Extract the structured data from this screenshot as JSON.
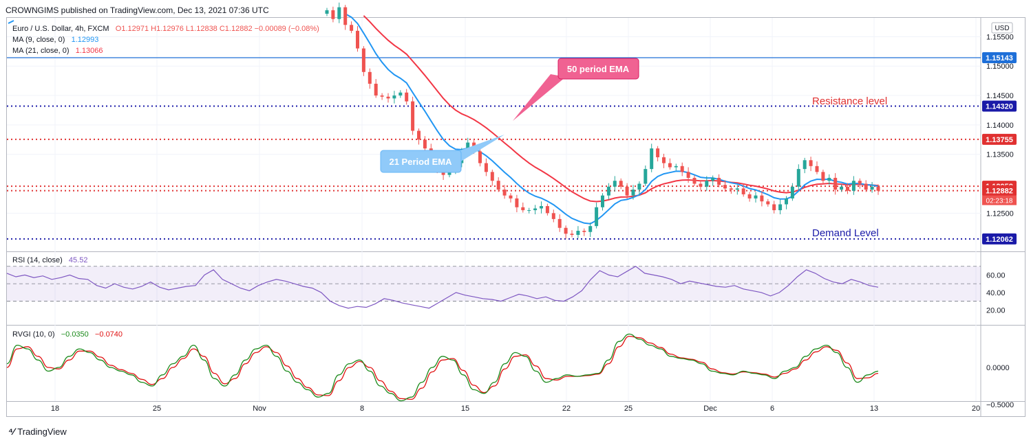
{
  "header": {
    "published": "CROWNGIMS published on TradingView.com, Dec 13, 2021 07:36 UTC"
  },
  "legend": {
    "symbol": "Euro / U.S. Dollar, 4h, FXCM",
    "ohlc": "O1.12971  H1.12976  L1.12838  C1.12882  −0.00089 (−0.08%)",
    "ma9_label": "MA (9, close, 0)",
    "ma9_value": "1.12993",
    "ma21_label": "MA (21, close, 0)",
    "ma21_value": "1.13066",
    "rsi_label": "RSI (14, close)",
    "rsi_value": "45.52",
    "rvgi_label": "RVGI (10, 0)",
    "rvgi_value1": "−0.0350",
    "rvgi_value2": "−0.0740"
  },
  "colors": {
    "bull": "#26a69a",
    "bear": "#ef5350",
    "ema_fast": "#2196f3",
    "ema_slow": "#f23645",
    "level_blue": "#1a1aa8",
    "level_red": "#e03030",
    "rsi": "#7e57c2",
    "rvgi_green": "#1b8a1b",
    "rvgi_red": "#e01010",
    "callout_pink": "#f06292",
    "callout_blue": "#90caf9"
  },
  "footer": {
    "brand": "TradingView"
  },
  "chart_data": {
    "type": "candlestick",
    "currency": "USD",
    "price_axis_ticks": [
      "1.15500",
      "1.15000",
      "1.14500",
      "1.14000",
      "1.13500",
      "1.12500"
    ],
    "x_tick_labels": [
      "18",
      "25",
      "Nov",
      "8",
      "15",
      "22",
      "25",
      "Dec",
      "6",
      "13",
      "20"
    ],
    "candles_approx_close": [
      1.1595,
      1.158,
      1.16,
      1.157,
      1.156,
      1.153,
      1.149,
      1.147,
      1.145,
      1.1448,
      1.1445,
      1.145,
      1.1455,
      1.144,
      1.139,
      1.1375,
      1.136,
      1.134,
      1.1325,
      1.1315,
      1.1322,
      1.1335,
      1.1355,
      1.137,
      1.1355,
      1.1335,
      1.132,
      1.1305,
      1.129,
      1.128,
      1.1275,
      1.126,
      1.1255,
      1.1255,
      1.1258,
      1.1262,
      1.125,
      1.124,
      1.1225,
      1.1215,
      1.1213,
      1.122,
      1.1218,
      1.1228,
      1.126,
      1.128,
      1.1295,
      1.1305,
      1.1295,
      1.128,
      1.129,
      1.13,
      1.1325,
      1.136,
      1.1345,
      1.1335,
      1.1328,
      1.133,
      1.132,
      1.131,
      1.13,
      1.1295,
      1.1305,
      1.131,
      1.1298,
      1.1292,
      1.129,
      1.1292,
      1.1282,
      1.1275,
      1.128,
      1.127,
      1.1265,
      1.1255,
      1.1265,
      1.1275,
      1.1295,
      1.1325,
      1.134,
      1.133,
      1.132,
      1.1305,
      1.131,
      1.129,
      1.1295,
      1.1288,
      1.1305,
      1.13,
      1.129,
      1.1295,
      1.1288
    ],
    "horizontal_levels": [
      {
        "price": 1.15143,
        "label": "1.15143",
        "style": "solid",
        "color": "#1e6fd8"
      },
      {
        "price": 1.1432,
        "label": "1.14320",
        "style": "dotted",
        "color": "#1a1aa8"
      },
      {
        "price": 1.13755,
        "label": "1.13755",
        "style": "dotted",
        "color": "#e03030"
      },
      {
        "price": 1.12958,
        "label": "1.12958",
        "style": "dotted",
        "color": "#e03030"
      },
      {
        "price": 1.12882,
        "label": "1.12882",
        "style": "dotted",
        "color": "#e03030"
      },
      {
        "price": 1.12062,
        "label": "1.12062",
        "style": "dotted",
        "color": "#1a1aa8"
      }
    ],
    "countdown": "02:23:18",
    "annotations": {
      "ema50": "50 period EMA",
      "ema21": "21 Period EMA",
      "resistance": "Resistance level",
      "demand": "Demand Level"
    },
    "rsi": {
      "ticks": [
        "60.00",
        "40.00",
        "20.00"
      ],
      "band": [
        30,
        70
      ],
      "values_approx": [
        62,
        58,
        60,
        57,
        59,
        55,
        57,
        60,
        56,
        55,
        48,
        45,
        50,
        46,
        44,
        47,
        52,
        46,
        43,
        45,
        47,
        48,
        60,
        66,
        55,
        50,
        45,
        42,
        48,
        52,
        55,
        53,
        50,
        47,
        45,
        40,
        30,
        25,
        22,
        24,
        23,
        27,
        33,
        31,
        28,
        26,
        24,
        22,
        28,
        34,
        40,
        37,
        35,
        33,
        32,
        30,
        34,
        38,
        36,
        33,
        35,
        31,
        30,
        35,
        42,
        55,
        65,
        60,
        58,
        64,
        70,
        62,
        60,
        58,
        55,
        50,
        53,
        51,
        49,
        47,
        46,
        48,
        44,
        42,
        40,
        36,
        40,
        48,
        58,
        66,
        62,
        56,
        52,
        50,
        55,
        52,
        48,
        46
      ]
    },
    "rvgi": {
      "ticks": [
        "0.0000",
        "−0.5000"
      ],
      "green_approx": [
        0.05,
        0.3,
        0.25,
        0.1,
        -0.05,
        0.0,
        0.15,
        0.25,
        0.2,
        0.1,
        0.0,
        -0.05,
        -0.1,
        -0.2,
        -0.25,
        -0.1,
        0.05,
        0.15,
        0.3,
        0.1,
        -0.15,
        -0.25,
        -0.1,
        0.1,
        0.25,
        0.3,
        0.15,
        -0.05,
        -0.2,
        -0.3,
        -0.4,
        -0.35,
        -0.1,
        0.05,
        0.1,
        -0.05,
        -0.25,
        -0.35,
        -0.45,
        -0.4,
        -0.2,
        0.0,
        0.15,
        0.1,
        -0.1,
        -0.3,
        -0.35,
        -0.2,
        0.05,
        0.2,
        0.15,
        -0.05,
        -0.2,
        -0.15,
        -0.1,
        -0.12,
        -0.1,
        -0.08,
        0.1,
        0.35,
        0.45,
        0.38,
        0.3,
        0.25,
        0.15,
        0.12,
        0.1,
        0.05,
        -0.05,
        -0.08,
        -0.1,
        -0.05,
        -0.08,
        -0.1,
        -0.15,
        -0.05,
        0.0,
        0.15,
        0.25,
        0.3,
        0.2,
        0.0,
        -0.2,
        -0.1,
        -0.05
      ],
      "red_approx": [
        0.0,
        0.25,
        0.28,
        0.15,
        0.0,
        -0.02,
        0.1,
        0.22,
        0.22,
        0.14,
        0.03,
        -0.03,
        -0.08,
        -0.16,
        -0.23,
        -0.15,
        0.0,
        0.12,
        0.25,
        0.15,
        -0.08,
        -0.22,
        -0.15,
        0.05,
        0.2,
        0.28,
        0.2,
        0.02,
        -0.15,
        -0.27,
        -0.37,
        -0.38,
        -0.18,
        0.0,
        0.08,
        0.0,
        -0.18,
        -0.32,
        -0.42,
        -0.43,
        -0.28,
        -0.06,
        0.1,
        0.12,
        -0.04,
        -0.24,
        -0.34,
        -0.25,
        -0.02,
        0.15,
        0.17,
        0.02,
        -0.15,
        -0.17,
        -0.12,
        -0.12,
        -0.11,
        -0.09,
        0.05,
        0.28,
        0.42,
        0.4,
        0.33,
        0.27,
        0.18,
        0.13,
        0.11,
        0.07,
        -0.02,
        -0.07,
        -0.09,
        -0.06,
        -0.07,
        -0.09,
        -0.13,
        -0.08,
        -0.02,
        0.1,
        0.21,
        0.28,
        0.23,
        0.06,
        -0.15,
        -0.14,
        -0.08
      ]
    }
  }
}
